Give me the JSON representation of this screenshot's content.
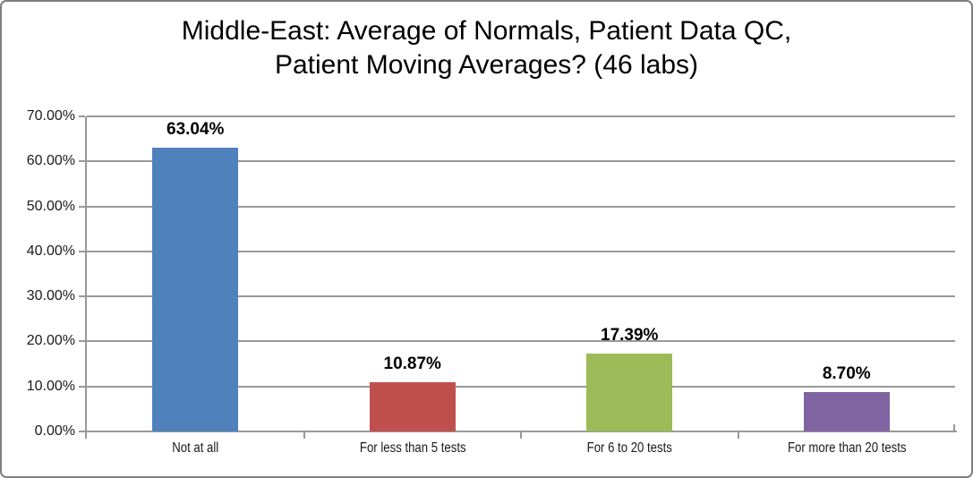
{
  "chart_data": {
    "type": "bar",
    "title": "Middle-East: Average of Normals, Patient Data QC, Patient Moving Averages? (46 labs)",
    "title_lines": [
      "Middle-East: Average of Normals, Patient Data QC,",
      "Patient Moving Averages? (46 labs)"
    ],
    "categories": [
      "Not at all",
      "For less than 5 tests",
      "For 6 to 20 tests",
      "For more than 20 tests"
    ],
    "values": [
      63.04,
      10.87,
      17.39,
      8.7
    ],
    "value_labels": [
      "63.04%",
      "10.87%",
      "17.39%",
      "8.70%"
    ],
    "bar_colors": [
      "#4f81bd",
      "#c0504d",
      "#9bbb59",
      "#8064a2"
    ],
    "xlabel": "",
    "ylabel": "",
    "ylim": [
      0,
      70
    ],
    "ytick_step": 10,
    "ytick_labels": [
      "0.00%",
      "10.00%",
      "20.00%",
      "30.00%",
      "40.00%",
      "50.00%",
      "60.00%",
      "70.00%"
    ],
    "grid": "horizontal",
    "legend": "none"
  },
  "colors": {
    "grid": "#999999",
    "axis": "#999999",
    "chart_border": "#7f7f7f",
    "background": "#ffffff",
    "title_text": "#000000",
    "label_text": "#000000"
  }
}
